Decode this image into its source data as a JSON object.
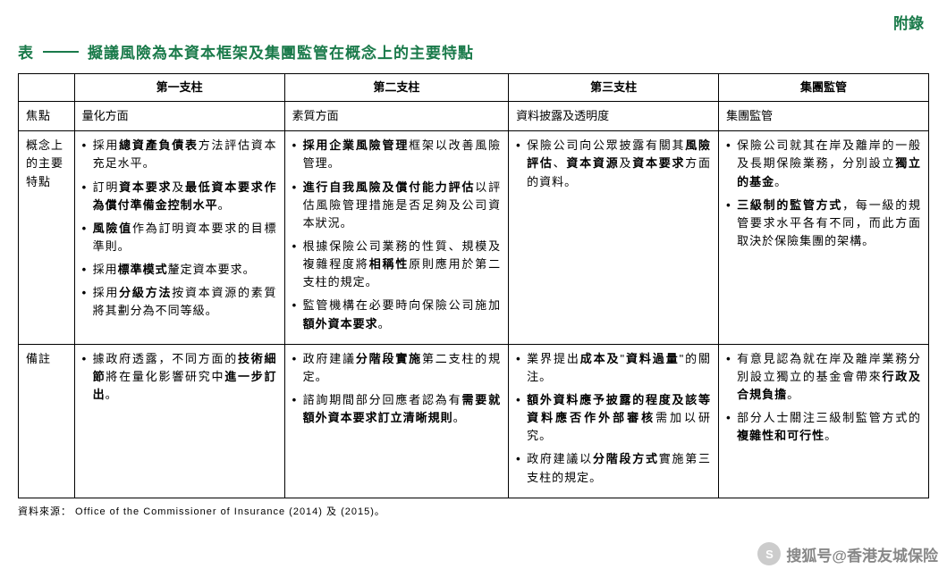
{
  "appendix": "附錄",
  "table_title_prefix": "表",
  "table_title": "擬議風險為本資本框架及集團監管在概念上的主要特點",
  "headers": {
    "blank": "",
    "c1": "第一支柱",
    "c2": "第二支柱",
    "c3": "第三支柱",
    "c4": "集團監管"
  },
  "rows": {
    "focus": {
      "label": "焦點",
      "c1": "量化方面",
      "c2": "素質方面",
      "c3": "資料披露及透明度",
      "c4": "集團監管"
    },
    "features": {
      "label": "概念上的主要特點",
      "c1": [
        {
          "pre": "採用",
          "b": "總資產負債表",
          "post": "方法評估資本充足水平。"
        },
        {
          "pre": "訂明",
          "b": "資本要求",
          "mid": "及",
          "b2": "最低資本要求作為償付準備金控制水平",
          "post": "。"
        },
        {
          "pre": "",
          "b": "風險值",
          "post": "作為訂明資本要求的目標準則。"
        },
        {
          "pre": "採用",
          "b": "標準模式",
          "post": "釐定資本要求。"
        },
        {
          "pre": "採用",
          "b": "分級方法",
          "post": "按資本資源的素質將其劃分為不同等級。"
        }
      ],
      "c2": [
        {
          "pre": "",
          "b": "採用企業風險管理",
          "post": "框架以改善風險管理。"
        },
        {
          "pre": "",
          "b": "進行自我風險及償付能力評估",
          "post": "以評估風險管理措施是否足夠及公司資本狀況。"
        },
        {
          "pre": "根據保險公司業務的性質、規模及複雜程度將",
          "b": "相稱性",
          "post": "原則應用於第二支柱的規定。"
        },
        {
          "pre": "監管機構在必要時向保險公司施加",
          "b": "額外資本要求",
          "post": "。"
        }
      ],
      "c3": [
        {
          "pre": "保險公司向公眾披露有關其",
          "b": "風險評估",
          "mid": "、",
          "b2": "資本資源",
          "mid2": "及",
          "b3": "資本要求",
          "post": "方面的資料。"
        }
      ],
      "c4": [
        {
          "pre": "保險公司就其在岸及離岸的一般及長期保險業務，分別設立",
          "b": "獨立的基金",
          "post": "。"
        },
        {
          "pre": "",
          "b": "三級制的監管方式",
          "post": "，每一級的規管要求水平各有不同，而此方面取決於保險集團的架構。"
        }
      ]
    },
    "notes": {
      "label": "備註",
      "c1": [
        {
          "pre": "據政府透露，不同方面的",
          "b": "技術細節",
          "mid": "將在量化影響研究中",
          "b2": "進一步訂出",
          "post": "。"
        }
      ],
      "c2": [
        {
          "pre": "政府建議",
          "b": "分階段實施",
          "post": "第二支柱的規定。"
        },
        {
          "pre": "諮詢期間部分回應者認為有",
          "b": "需要就額外資本要求訂立清晰規則",
          "post": "。"
        }
      ],
      "c3": [
        {
          "pre": "業界提出",
          "b": "成本及",
          "mid": "\"",
          "b2": "資料過量",
          "post": "\"的關注。"
        },
        {
          "pre": "",
          "b": "額外資料應予披露的程度及該等資料應否作外部審核",
          "post": "需加以研究。"
        },
        {
          "pre": "政府建議以",
          "b": "分階段方式",
          "post": "實施第三支柱的規定。"
        }
      ],
      "c4": [
        {
          "pre": "有意見認為就在岸及離岸業務分別設立獨立的基金會帶來",
          "b": "行政及合規負擔",
          "post": "。"
        },
        {
          "pre": "部分人士關注三級制監管方式的",
          "b": "複雜性和可行性",
          "post": "。"
        }
      ]
    }
  },
  "source": "資料來源： Office of the Commissioner of Insurance (2014) 及 (2015)。",
  "watermark": "搜狐号@香港友城保险",
  "colors": {
    "accent": "#1a7a4a",
    "text": "#000000",
    "watermark": "#888888"
  }
}
